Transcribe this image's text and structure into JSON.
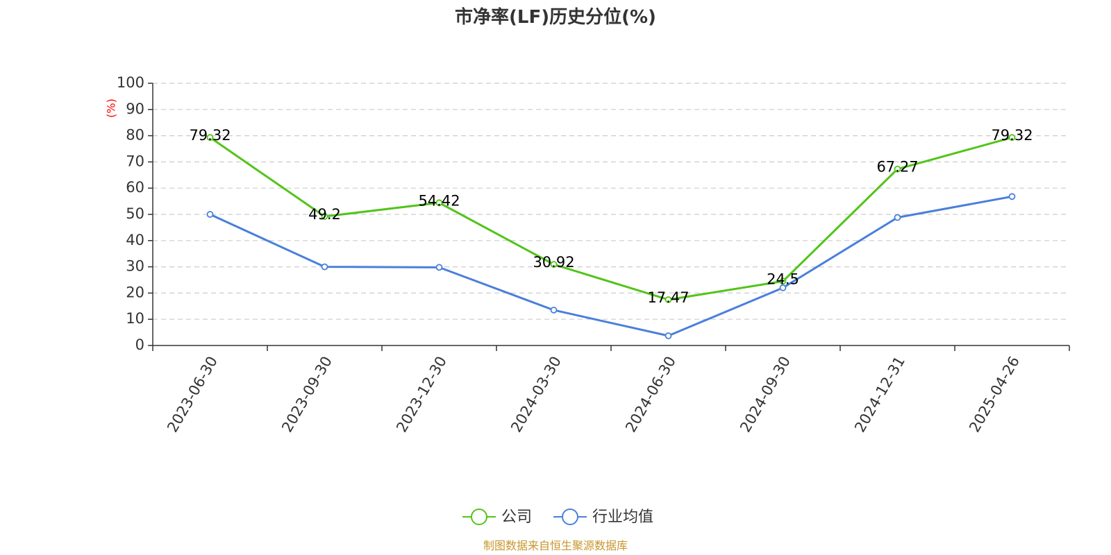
{
  "chart_data": {
    "type": "line",
    "title": "市净率(LF)历史分位(%)",
    "ylabel": "(%)",
    "xlabel": "",
    "ylim": [
      0,
      100
    ],
    "yticks": [
      0,
      10,
      20,
      30,
      40,
      50,
      60,
      70,
      80,
      90,
      100
    ],
    "categories": [
      "2023-06-30",
      "2023-09-30",
      "2023-12-30",
      "2024-03-30",
      "2024-06-30",
      "2024-09-30",
      "2024-12-31",
      "2025-04-26"
    ],
    "grid": true,
    "legend_position": "bottom-center",
    "series": [
      {
        "name": "公司",
        "color": "#52c41a",
        "values": [
          79.32,
          49.2,
          54.42,
          30.92,
          17.47,
          24.5,
          67.27,
          79.32
        ],
        "labels": [
          "79.32",
          "49.2",
          "54.42",
          "30.92",
          "17.47",
          "24.5",
          "67.27",
          "79.32"
        ],
        "show_labels": true
      },
      {
        "name": "行业均值",
        "color": "#4a7fdb",
        "values": [
          50.0,
          30.0,
          29.8,
          13.5,
          3.7,
          22.0,
          48.8,
          56.8
        ],
        "show_labels": false
      }
    ],
    "source": "制图数据来自恒生聚源数据库"
  }
}
